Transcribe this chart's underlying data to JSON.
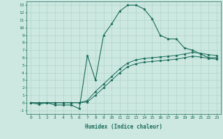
{
  "xlabel": "Humidex (Indice chaleur)",
  "background_color": "#cce8e0",
  "line_color": "#1a6b5a",
  "grid_color": "#aacfc8",
  "xlim": [
    -0.5,
    23.5
  ],
  "ylim": [
    -1.5,
    13.5
  ],
  "xticks": [
    0,
    1,
    2,
    3,
    4,
    5,
    6,
    7,
    8,
    9,
    10,
    11,
    12,
    13,
    14,
    15,
    16,
    17,
    18,
    19,
    20,
    21,
    22,
    23
  ],
  "yticks": [
    -1,
    0,
    1,
    2,
    3,
    4,
    5,
    6,
    7,
    8,
    9,
    10,
    11,
    12,
    13
  ],
  "line1_x": [
    0,
    1,
    2,
    3,
    4,
    5,
    6,
    7,
    8,
    9,
    10,
    11,
    12,
    13,
    14,
    15,
    16,
    17,
    18,
    19,
    20,
    21,
    22,
    23
  ],
  "line1_y": [
    0,
    -0.2,
    0,
    -0.3,
    -0.3,
    -0.3,
    -0.8,
    6.3,
    3.0,
    9.0,
    10.5,
    12.2,
    13.0,
    13.0,
    12.5,
    11.2,
    9.0,
    8.5,
    8.5,
    7.3,
    7.0,
    6.5,
    6.0,
    6.0
  ],
  "line2_x": [
    0,
    1,
    2,
    3,
    4,
    5,
    6,
    7,
    8,
    9,
    10,
    11,
    12,
    13,
    14,
    15,
    16,
    17,
    18,
    19,
    20,
    21,
    22,
    23
  ],
  "line2_y": [
    0,
    0,
    0,
    0,
    0,
    0,
    0,
    0.3,
    1.5,
    2.5,
    3.5,
    4.5,
    5.3,
    5.7,
    5.9,
    6.0,
    6.1,
    6.2,
    6.3,
    6.5,
    6.7,
    6.6,
    6.4,
    6.3
  ],
  "line3_x": [
    0,
    1,
    2,
    3,
    4,
    5,
    6,
    7,
    8,
    9,
    10,
    11,
    12,
    13,
    14,
    15,
    16,
    17,
    18,
    19,
    20,
    21,
    22,
    23
  ],
  "line3_y": [
    0,
    0,
    0,
    0,
    0,
    0,
    0,
    0.1,
    1.0,
    2.0,
    3.0,
    4.0,
    4.8,
    5.2,
    5.4,
    5.5,
    5.6,
    5.7,
    5.8,
    6.0,
    6.2,
    6.1,
    5.9,
    5.8
  ]
}
